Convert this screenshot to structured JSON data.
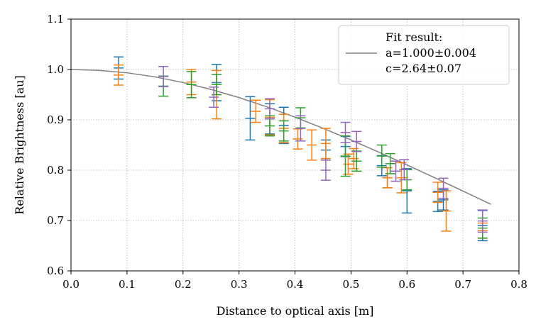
{
  "chart_data": {
    "type": "scatter",
    "title": "",
    "xlabel": "Distance to optical axis [m]",
    "ylabel": "Relative Brightness [au]",
    "xlim": [
      0.0,
      0.8
    ],
    "ylim": [
      0.6,
      1.1
    ],
    "xticks": [
      "0.0",
      "0.1",
      "0.2",
      "0.3",
      "0.4",
      "0.5",
      "0.6",
      "0.7",
      "0.8"
    ],
    "yticks": [
      "0.6",
      "0.7",
      "0.8",
      "0.9",
      "1.0",
      "1.1"
    ],
    "grid": true,
    "legend": {
      "placement": "top-right",
      "title": "Fit result:",
      "lines": [
        "a=1.000±0.004",
        "c=2.64±0.07"
      ]
    },
    "fit": {
      "name": "Fit result:",
      "color": "#808080",
      "x": [
        0.0,
        0.05,
        0.1,
        0.15,
        0.2,
        0.25,
        0.3,
        0.35,
        0.4,
        0.45,
        0.5,
        0.55,
        0.6,
        0.65,
        0.7,
        0.75
      ],
      "y": [
        1.0,
        0.9983,
        0.9934,
        0.9853,
        0.9742,
        0.9604,
        0.9442,
        0.9258,
        0.9054,
        0.8834,
        0.8601,
        0.8357,
        0.8105,
        0.7847,
        0.7585,
        0.7322
      ]
    },
    "series": [
      {
        "color": "#1f77b4",
        "points": [
          {
            "x": 0.085,
            "y": 1.003,
            "err": 0.022
          },
          {
            "x": 0.26,
            "y": 0.974,
            "err": 0.036
          },
          {
            "x": 0.32,
            "y": 0.903,
            "err": 0.043
          },
          {
            "x": 0.355,
            "y": 0.902,
            "err": 0.03
          },
          {
            "x": 0.38,
            "y": 0.889,
            "err": 0.036
          },
          {
            "x": 0.455,
            "y": 0.84,
            "err": 0.02
          },
          {
            "x": 0.49,
            "y": 0.847,
            "err": 0.02
          },
          {
            "x": 0.555,
            "y": 0.809,
            "err": 0.02
          },
          {
            "x": 0.565,
            "y": 0.785,
            "err": 0.02
          },
          {
            "x": 0.6,
            "y": 0.759,
            "err": 0.044
          },
          {
            "x": 0.655,
            "y": 0.738,
            "err": 0.02
          },
          {
            "x": 0.665,
            "y": 0.741,
            "err": 0.02
          },
          {
            "x": 0.735,
            "y": 0.69,
            "err": 0.03
          }
        ]
      },
      {
        "color": "#ff7f0e",
        "points": [
          {
            "x": 0.085,
            "y": 0.989,
            "err": 0.02
          },
          {
            "x": 0.215,
            "y": 0.975,
            "err": 0.025
          },
          {
            "x": 0.26,
            "y": 0.95,
            "err": 0.048
          },
          {
            "x": 0.33,
            "y": 0.917,
            "err": 0.022
          },
          {
            "x": 0.355,
            "y": 0.905,
            "err": 0.035
          },
          {
            "x": 0.38,
            "y": 0.883,
            "err": 0.028
          },
          {
            "x": 0.405,
            "y": 0.862,
            "err": 0.02
          },
          {
            "x": 0.43,
            "y": 0.85,
            "err": 0.03
          },
          {
            "x": 0.455,
            "y": 0.853,
            "err": 0.03
          },
          {
            "x": 0.495,
            "y": 0.812,
            "err": 0.02
          },
          {
            "x": 0.505,
            "y": 0.823,
            "err": 0.02
          },
          {
            "x": 0.565,
            "y": 0.785,
            "err": 0.02
          },
          {
            "x": 0.59,
            "y": 0.785,
            "err": 0.03
          },
          {
            "x": 0.655,
            "y": 0.756,
            "err": 0.02
          },
          {
            "x": 0.67,
            "y": 0.719,
            "err": 0.04
          },
          {
            "x": 0.735,
            "y": 0.68,
            "err": 0.015
          }
        ]
      },
      {
        "color": "#2ca02c",
        "points": [
          {
            "x": 0.165,
            "y": 0.967,
            "err": 0.02
          },
          {
            "x": 0.215,
            "y": 0.97,
            "err": 0.026
          },
          {
            "x": 0.26,
            "y": 0.97,
            "err": 0.02
          },
          {
            "x": 0.355,
            "y": 0.888,
            "err": 0.02
          },
          {
            "x": 0.38,
            "y": 0.878,
            "err": 0.02
          },
          {
            "x": 0.41,
            "y": 0.904,
            "err": 0.02
          },
          {
            "x": 0.49,
            "y": 0.828,
            "err": 0.04
          },
          {
            "x": 0.51,
            "y": 0.818,
            "err": 0.02
          },
          {
            "x": 0.555,
            "y": 0.828,
            "err": 0.022
          },
          {
            "x": 0.57,
            "y": 0.813,
            "err": 0.02
          },
          {
            "x": 0.6,
            "y": 0.781,
            "err": 0.02
          },
          {
            "x": 0.735,
            "y": 0.685,
            "err": 0.02
          }
        ]
      },
      {
        "color": "#9467bd",
        "points": [
          {
            "x": 0.165,
            "y": 0.986,
            "err": 0.02
          },
          {
            "x": 0.255,
            "y": 0.945,
            "err": 0.02
          },
          {
            "x": 0.355,
            "y": 0.922,
            "err": 0.02
          },
          {
            "x": 0.41,
            "y": 0.883,
            "err": 0.025
          },
          {
            "x": 0.455,
            "y": 0.8,
            "err": 0.02
          },
          {
            "x": 0.49,
            "y": 0.875,
            "err": 0.02
          },
          {
            "x": 0.51,
            "y": 0.857,
            "err": 0.02
          },
          {
            "x": 0.58,
            "y": 0.798,
            "err": 0.02
          },
          {
            "x": 0.595,
            "y": 0.801,
            "err": 0.02
          },
          {
            "x": 0.665,
            "y": 0.764,
            "err": 0.02
          },
          {
            "x": 0.735,
            "y": 0.699,
            "err": 0.022
          }
        ]
      }
    ]
  }
}
